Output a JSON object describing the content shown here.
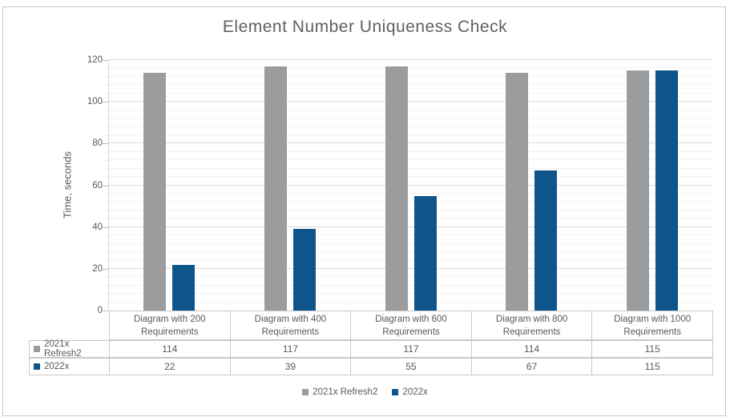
{
  "chart_data": {
    "type": "bar",
    "title": "Element Number Uniqueness Check",
    "xlabel": "",
    "ylabel": "Time, seconds",
    "ylim": [
      0,
      120
    ],
    "y_ticks": [
      0,
      20,
      40,
      60,
      80,
      100,
      120
    ],
    "y_minor_unit": 4,
    "grid": true,
    "legend_position": "bottom",
    "data_table_shown": true,
    "categories": [
      "Diagram with 200 Requirements",
      "Diagram with 400 Requirements",
      "Diagram with 600 Requirements",
      "Diagram with 800 Requirements",
      "Diagram with 1000 Requirements"
    ],
    "series": [
      {
        "name": "2021x Refresh2",
        "color": "#9a9c9e",
        "values": [
          114,
          117,
          117,
          114,
          115
        ]
      },
      {
        "name": "2022x",
        "color": "#0e558c",
        "values": [
          22,
          39,
          55,
          67,
          115
        ]
      }
    ]
  },
  "colors": {
    "title_text": "#606060",
    "axis_text": "#595959",
    "gridline_major": "#dadada",
    "gridline_minor": "#f2f2f2",
    "table_border": "#c8c8c8",
    "chart_border": "#c6c6c6",
    "background": "#ffffff"
  }
}
